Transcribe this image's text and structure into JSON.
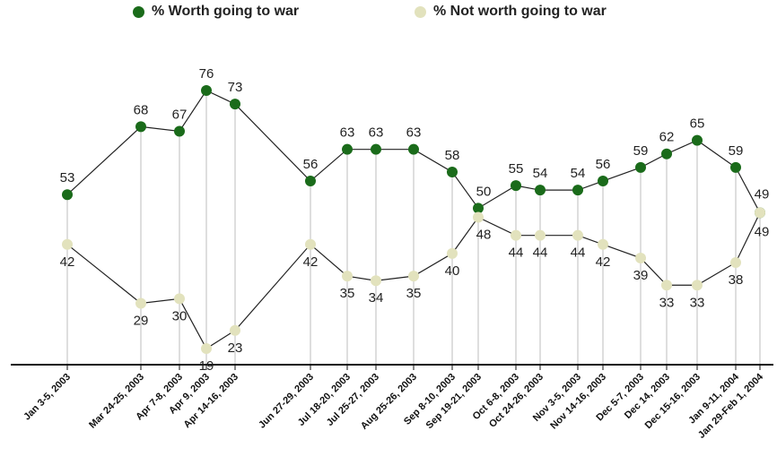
{
  "chart_data": {
    "type": "line",
    "title": "",
    "xlabel": "",
    "ylabel": "",
    "ylim": [
      0,
      100
    ],
    "grid": false,
    "legend_position": "top",
    "categories": [
      "Jan 3-5, 2003",
      "Mar 24-25, 2003",
      "Apr 7-8, 2003",
      "Apr 9, 2003",
      "Apr 14-16, 2003",
      "Jun 27-29, 2003",
      "Jul 18-20, 2003",
      "Jul 25-27, 2003",
      "Aug 25-26, 2003",
      "Sep 8-10, 2003",
      "Sep 19-21, 2003",
      "Oct 6-8, 2003",
      "Oct 24-26, 2003",
      "Nov 3-5, 2003",
      "Nov 14-16, 2003",
      "Dec 5-7, 2003",
      "Dec 14, 2003",
      "Dec 15-16, 2003",
      "Jan 9-11, 2004",
      "Jan 29-Feb 1, 2004"
    ],
    "series": [
      {
        "name": "% Worth going to war",
        "color": "#1a6b1a",
        "values": [
          53,
          68,
          67,
          76,
          73,
          56,
          63,
          63,
          63,
          58,
          50,
          55,
          54,
          54,
          56,
          59,
          62,
          65,
          59,
          49
        ]
      },
      {
        "name": "% Not worth going to war",
        "color": "#e2e2bd",
        "values": [
          42,
          29,
          30,
          19,
          23,
          42,
          35,
          34,
          35,
          40,
          48,
          44,
          44,
          44,
          42,
          39,
          33,
          33,
          38,
          49
        ]
      }
    ]
  }
}
